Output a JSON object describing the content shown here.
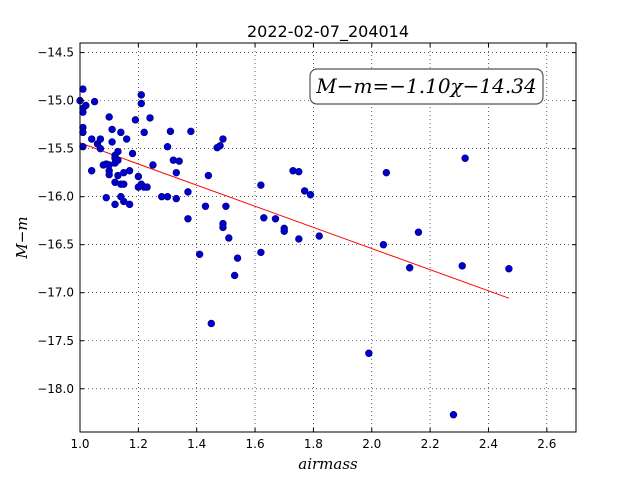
{
  "chart_data": {
    "type": "scatter",
    "title": "2022-02-07_204014",
    "xlabel": "airmass",
    "ylabel": "M−m",
    "annotation": "M−m=−1.10χ−14.34",
    "xlim": [
      1.0,
      2.7
    ],
    "ylim": [
      -14.4,
      -18.45
    ],
    "xticks": [
      1.0,
      1.2,
      1.4,
      1.6,
      1.8,
      2.0,
      2.2,
      2.4,
      2.6
    ],
    "xtick_labels": [
      "1.0",
      "1.2",
      "1.4",
      "1.6",
      "1.8",
      "2.0",
      "2.2",
      "2.4",
      "2.6"
    ],
    "yticks": [
      -14.5,
      -15.0,
      -15.5,
      -16.0,
      -16.5,
      -17.0,
      -17.5,
      -18.0
    ],
    "ytick_labels": [
      "−14.5",
      "−15.0",
      "−15.5",
      "−16.0",
      "−16.5",
      "−17.0",
      "−17.5",
      "−18.0"
    ],
    "grid": true,
    "marker_color": "#0000cc",
    "fit_color": "#ff0000",
    "fit_line": {
      "slope": -1.1,
      "intercept": -14.34,
      "x_range": [
        1.0,
        2.47
      ]
    },
    "points": [
      [
        1.0,
        -15.0
      ],
      [
        1.01,
        -15.08
      ],
      [
        1.01,
        -15.12
      ],
      [
        1.01,
        -15.28
      ],
      [
        1.01,
        -15.33
      ],
      [
        1.01,
        -15.48
      ],
      [
        1.01,
        -14.88
      ],
      [
        1.02,
        -15.05
      ],
      [
        1.04,
        -15.4
      ],
      [
        1.04,
        -15.73
      ],
      [
        1.05,
        -15.01
      ],
      [
        1.06,
        -15.45
      ],
      [
        1.07,
        -15.4
      ],
      [
        1.07,
        -15.5
      ],
      [
        1.08,
        -15.67
      ],
      [
        1.09,
        -15.66
      ],
      [
        1.09,
        -16.01
      ],
      [
        1.1,
        -15.73
      ],
      [
        1.1,
        -15.77
      ],
      [
        1.1,
        -15.67
      ],
      [
        1.1,
        -15.17
      ],
      [
        1.11,
        -15.3
      ],
      [
        1.11,
        -15.43
      ],
      [
        1.12,
        -16.08
      ],
      [
        1.12,
        -15.57
      ],
      [
        1.12,
        -15.6
      ],
      [
        1.12,
        -15.65
      ],
      [
        1.12,
        -15.85
      ],
      [
        1.13,
        -15.53
      ],
      [
        1.13,
        -15.62
      ],
      [
        1.13,
        -15.78
      ],
      [
        1.14,
        -15.33
      ],
      [
        1.14,
        -15.87
      ],
      [
        1.14,
        -16.0
      ],
      [
        1.15,
        -16.05
      ],
      [
        1.15,
        -15.75
      ],
      [
        1.15,
        -15.87
      ],
      [
        1.16,
        -15.4
      ],
      [
        1.17,
        -15.73
      ],
      [
        1.17,
        -16.08
      ],
      [
        1.18,
        -15.55
      ],
      [
        1.19,
        -15.2
      ],
      [
        1.2,
        -15.79
      ],
      [
        1.2,
        -15.9
      ],
      [
        1.21,
        -14.94
      ],
      [
        1.21,
        -15.03
      ],
      [
        1.21,
        -15.87
      ],
      [
        1.22,
        -15.33
      ],
      [
        1.22,
        -15.9
      ],
      [
        1.23,
        -15.9
      ],
      [
        1.24,
        -15.18
      ],
      [
        1.25,
        -15.67
      ],
      [
        1.28,
        -16.0
      ],
      [
        1.3,
        -16.0
      ],
      [
        1.3,
        -15.48
      ],
      [
        1.31,
        -15.32
      ],
      [
        1.32,
        -15.62
      ],
      [
        1.33,
        -15.75
      ],
      [
        1.33,
        -16.02
      ],
      [
        1.34,
        -15.63
      ],
      [
        1.37,
        -15.95
      ],
      [
        1.37,
        -16.23
      ],
      [
        1.38,
        -15.32
      ],
      [
        1.41,
        -16.6
      ],
      [
        1.43,
        -16.1
      ],
      [
        1.44,
        -15.78
      ],
      [
        1.45,
        -17.32
      ],
      [
        1.47,
        -15.49
      ],
      [
        1.48,
        -15.47
      ],
      [
        1.49,
        -15.4
      ],
      [
        1.49,
        -16.28
      ],
      [
        1.49,
        -16.32
      ],
      [
        1.5,
        -16.1
      ],
      [
        1.51,
        -16.43
      ],
      [
        1.53,
        -16.82
      ],
      [
        1.54,
        -16.64
      ],
      [
        1.62,
        -15.88
      ],
      [
        1.62,
        -16.58
      ],
      [
        1.63,
        -16.22
      ],
      [
        1.67,
        -16.23
      ],
      [
        1.7,
        -16.33
      ],
      [
        1.7,
        -16.36
      ],
      [
        1.73,
        -15.73
      ],
      [
        1.75,
        -15.74
      ],
      [
        1.75,
        -16.44
      ],
      [
        1.77,
        -15.94
      ],
      [
        1.79,
        -15.98
      ],
      [
        1.82,
        -16.41
      ],
      [
        1.99,
        -17.63
      ],
      [
        2.04,
        -16.5
      ],
      [
        2.05,
        -15.75
      ],
      [
        2.13,
        -16.74
      ],
      [
        2.16,
        -16.37
      ],
      [
        2.28,
        -18.27
      ],
      [
        2.31,
        -16.72
      ],
      [
        2.32,
        -15.6
      ],
      [
        2.47,
        -16.75
      ]
    ]
  }
}
